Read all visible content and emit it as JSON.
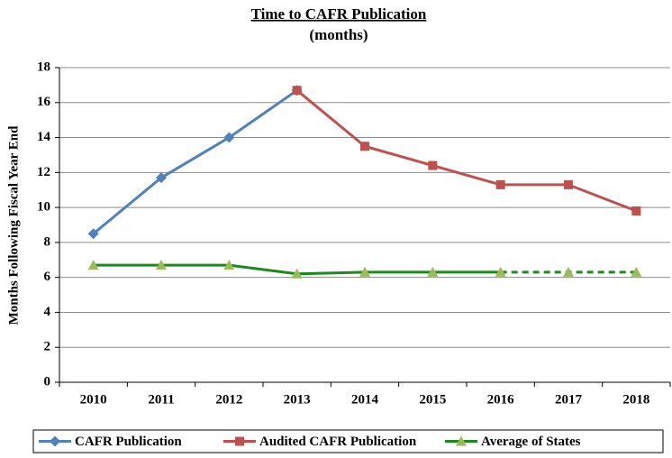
{
  "chart_data": {
    "type": "line",
    "title": "Time to CAFR Publication",
    "subtitle": "(months)",
    "y_label": "Months Following Fiscal Year End",
    "categories": [
      "2010",
      "2011",
      "2012",
      "2013",
      "2014",
      "2015",
      "2016",
      "2017",
      "2018"
    ],
    "series": [
      {
        "name": "CAFR Publication",
        "color": "#4f81bd",
        "marker": "diamond",
        "values": [
          8.5,
          11.7,
          14,
          16.7,
          null,
          null,
          null,
          null,
          null
        ]
      },
      {
        "name": "Audited CAFR Publication",
        "color": "#c0504d",
        "marker": "square",
        "values": [
          null,
          null,
          null,
          16.7,
          13.5,
          12.4,
          11.3,
          11.3,
          9.8
        ]
      },
      {
        "name": "Average of States",
        "color": "#1a8a1a",
        "marker": "triangle",
        "marker_color": "#9bbb59",
        "dash_from_index": 6,
        "values": [
          6.7,
          6.7,
          6.7,
          6.2,
          6.3,
          6.3,
          6.3,
          6.3,
          6.3
        ]
      }
    ],
    "ylim": [
      0,
      18
    ],
    "yticks": [
      0,
      2,
      4,
      6,
      8,
      10,
      12,
      14,
      16,
      18
    ],
    "grid": true,
    "legend": "bottom"
  }
}
